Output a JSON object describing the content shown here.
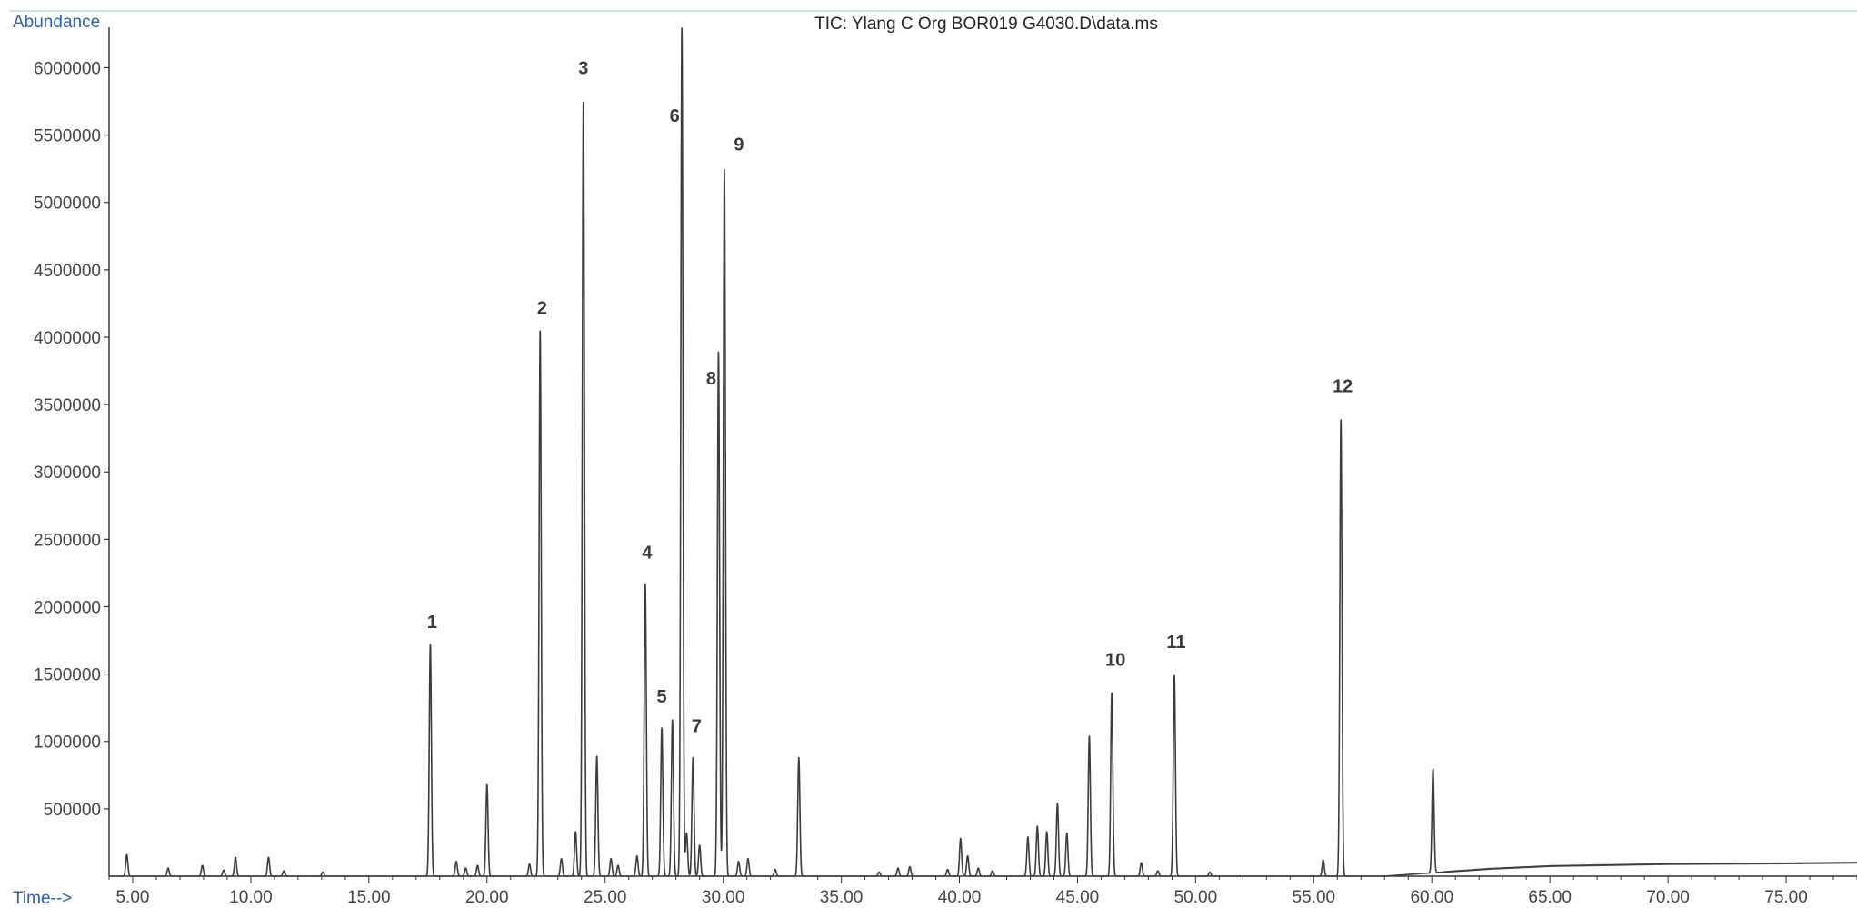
{
  "colors": {
    "axis": "#333333",
    "trace": "#3c3c3c",
    "axis_label": "#2f5fa8",
    "text": "#444444",
    "top_rule": "#8fd0c9"
  },
  "chart_data": {
    "type": "line",
    "title": "TIC: Ylang C Org BOR019 G4030.D\\data.ms",
    "xlabel": "Time-->",
    "ylabel": "Abundance",
    "xlim": [
      4.0,
      78.0
    ],
    "ylim": [
      0,
      6300000
    ],
    "grid": false,
    "x_ticks": [
      {
        "value": 5,
        "label": "5.00"
      },
      {
        "value": 10,
        "label": "10.00"
      },
      {
        "value": 15,
        "label": "15.00"
      },
      {
        "value": 20,
        "label": "20.00"
      },
      {
        "value": 25,
        "label": "25.00"
      },
      {
        "value": 30,
        "label": "30.00"
      },
      {
        "value": 35,
        "label": "35.00"
      },
      {
        "value": 40,
        "label": "40.00"
      },
      {
        "value": 45,
        "label": "45.00"
      },
      {
        "value": 50,
        "label": "50.00"
      },
      {
        "value": 55,
        "label": "55.00"
      },
      {
        "value": 60,
        "label": "60.00"
      },
      {
        "value": 65,
        "label": "65.00"
      },
      {
        "value": 70,
        "label": "70.00"
      },
      {
        "value": 75,
        "label": "75.00"
      }
    ],
    "y_ticks": [
      {
        "value": 500000,
        "label": "500000"
      },
      {
        "value": 1000000,
        "label": "1000000"
      },
      {
        "value": 1500000,
        "label": "1500000"
      },
      {
        "value": 2000000,
        "label": "2000000"
      },
      {
        "value": 2500000,
        "label": "2500000"
      },
      {
        "value": 3000000,
        "label": "3000000"
      },
      {
        "value": 3500000,
        "label": "3500000"
      },
      {
        "value": 4000000,
        "label": "4000000"
      },
      {
        "value": 4500000,
        "label": "4500000"
      },
      {
        "value": 5000000,
        "label": "5000000"
      },
      {
        "value": 5500000,
        "label": "5500000"
      },
      {
        "value": 6000000,
        "label": "6000000"
      }
    ],
    "peaks": [
      {
        "rt": 4.75,
        "abundance": 160000
      },
      {
        "rt": 6.5,
        "abundance": 60000
      },
      {
        "rt": 7.95,
        "abundance": 80000
      },
      {
        "rt": 8.85,
        "abundance": 45000
      },
      {
        "rt": 9.35,
        "abundance": 140000
      },
      {
        "rt": 10.75,
        "abundance": 140000
      },
      {
        "rt": 11.4,
        "abundance": 40000
      },
      {
        "rt": 13.05,
        "abundance": 30000
      },
      {
        "rt": 17.6,
        "abundance": 1720000,
        "label": "1"
      },
      {
        "rt": 18.7,
        "abundance": 110000
      },
      {
        "rt": 19.1,
        "abundance": 60000
      },
      {
        "rt": 19.6,
        "abundance": 80000
      },
      {
        "rt": 20.0,
        "abundance": 680000
      },
      {
        "rt": 21.8,
        "abundance": 90000
      },
      {
        "rt": 22.25,
        "abundance": 4050000,
        "label": "2"
      },
      {
        "rt": 23.15,
        "abundance": 130000
      },
      {
        "rt": 23.75,
        "abundance": 330000
      },
      {
        "rt": 24.08,
        "abundance": 5750000,
        "label": "3"
      },
      {
        "rt": 24.65,
        "abundance": 890000
      },
      {
        "rt": 25.25,
        "abundance": 130000
      },
      {
        "rt": 25.55,
        "abundance": 80000
      },
      {
        "rt": 26.35,
        "abundance": 150000
      },
      {
        "rt": 26.7,
        "abundance": 2170000,
        "label": "4"
      },
      {
        "rt": 27.4,
        "abundance": 1100000,
        "label": "5"
      },
      {
        "rt": 27.85,
        "abundance": 1160000
      },
      {
        "rt": 28.25,
        "abundance": 6300000,
        "label": "6"
      },
      {
        "rt": 28.45,
        "abundance": 320000
      },
      {
        "rt": 28.72,
        "abundance": 880000,
        "label": "7"
      },
      {
        "rt": 29.0,
        "abundance": 230000
      },
      {
        "rt": 29.8,
        "abundance": 3890000,
        "label": "8"
      },
      {
        "rt": 30.05,
        "abundance": 5250000,
        "label": "9"
      },
      {
        "rt": 30.65,
        "abundance": 110000
      },
      {
        "rt": 31.05,
        "abundance": 130000
      },
      {
        "rt": 32.2,
        "abundance": 50000
      },
      {
        "rt": 33.2,
        "abundance": 880000
      },
      {
        "rt": 36.6,
        "abundance": 30000
      },
      {
        "rt": 37.4,
        "abundance": 60000
      },
      {
        "rt": 37.9,
        "abundance": 70000
      },
      {
        "rt": 39.5,
        "abundance": 50000
      },
      {
        "rt": 40.05,
        "abundance": 280000
      },
      {
        "rt": 40.35,
        "abundance": 150000
      },
      {
        "rt": 40.8,
        "abundance": 60000
      },
      {
        "rt": 41.4,
        "abundance": 40000
      },
      {
        "rt": 42.9,
        "abundance": 290000
      },
      {
        "rt": 43.3,
        "abundance": 370000
      },
      {
        "rt": 43.7,
        "abundance": 330000
      },
      {
        "rt": 44.15,
        "abundance": 540000
      },
      {
        "rt": 44.55,
        "abundance": 320000
      },
      {
        "rt": 45.5,
        "abundance": 1040000
      },
      {
        "rt": 46.45,
        "abundance": 1360000,
        "label": "10"
      },
      {
        "rt": 47.7,
        "abundance": 100000
      },
      {
        "rt": 48.4,
        "abundance": 40000
      },
      {
        "rt": 49.1,
        "abundance": 1490000,
        "label": "11"
      },
      {
        "rt": 50.6,
        "abundance": 30000
      },
      {
        "rt": 55.4,
        "abundance": 120000
      },
      {
        "rt": 56.15,
        "abundance": 3390000,
        "label": "12"
      },
      {
        "rt": 60.05,
        "abundance": 770000
      }
    ],
    "baseline_drift": [
      {
        "rt": 4.0,
        "abundance": 0
      },
      {
        "rt": 58.0,
        "abundance": 0
      },
      {
        "rt": 60.0,
        "abundance": 25000
      },
      {
        "rt": 62.5,
        "abundance": 55000
      },
      {
        "rt": 65.0,
        "abundance": 75000
      },
      {
        "rt": 70.0,
        "abundance": 90000
      },
      {
        "rt": 75.0,
        "abundance": 95000
      },
      {
        "rt": 78.0,
        "abundance": 100000
      }
    ]
  }
}
